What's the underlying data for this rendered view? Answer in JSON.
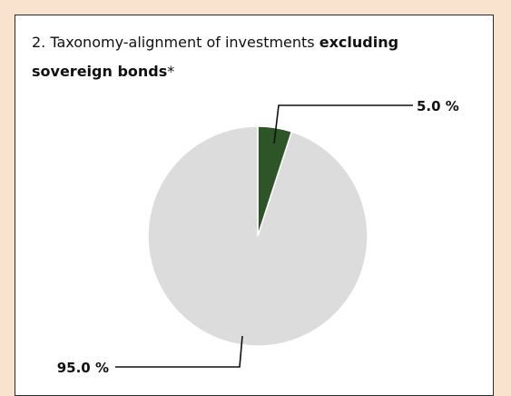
{
  "title": {
    "prefix": "2. Taxonomy-alignment of investments ",
    "bold": "excluding sovereign bonds",
    "suffix": "*"
  },
  "colors": {
    "background": "#f9e3cf",
    "aligned": "#2d5528",
    "other": "#dcdcdc"
  },
  "chart_data": {
    "type": "pie",
    "values": [
      5.0,
      95.0
    ],
    "data_labels": [
      "5.0 %",
      "95.0 %"
    ],
    "colors": [
      "#2d5528",
      "#dcdcdc"
    ],
    "start_angle_deg": 0,
    "direction": "clockwise"
  }
}
